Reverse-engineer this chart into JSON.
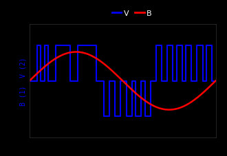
{
  "background_color": "#000000",
  "plot_bg_color": "#000000",
  "legend_colors": [
    "#0000ff",
    "#ff0000"
  ],
  "legend_labels": [
    "V",
    "B"
  ],
  "ylabel": "B (1)  V (2)",
  "ylabel_color": "#0000ff",
  "ylabel_fontsize": 7,
  "pwm_color": "#0000ff",
  "sine_color": "#ff0000",
  "pwm_linewidth": 1.5,
  "sine_linewidth": 1.8,
  "xlim": [
    0,
    1
  ],
  "ylim": [
    -1.6,
    1.6
  ],
  "sine_amplitude": 0.82,
  "sine_phase": 0.0,
  "pwm_segments": [
    [
      0.0,
      0.0
    ],
    [
      0.04,
      1.0
    ],
    [
      0.06,
      0.0
    ],
    [
      0.08,
      1.0
    ],
    [
      0.1,
      0.0
    ],
    [
      0.14,
      1.0
    ],
    [
      0.22,
      0.0
    ],
    [
      0.26,
      1.0
    ],
    [
      0.36,
      0.0
    ],
    [
      0.4,
      -1.0
    ],
    [
      0.43,
      0.0
    ],
    [
      0.46,
      -1.0
    ],
    [
      0.49,
      0.0
    ],
    [
      0.52,
      -1.0
    ],
    [
      0.55,
      0.0
    ],
    [
      0.57,
      -1.0
    ],
    [
      0.6,
      0.0
    ],
    [
      0.62,
      -1.0
    ],
    [
      0.65,
      0.0
    ],
    [
      0.68,
      1.0
    ],
    [
      0.71,
      0.0
    ],
    [
      0.74,
      1.0
    ],
    [
      0.77,
      0.0
    ],
    [
      0.79,
      1.0
    ],
    [
      0.82,
      0.0
    ],
    [
      0.84,
      1.0
    ],
    [
      0.87,
      0.0
    ],
    [
      0.9,
      1.0
    ],
    [
      0.93,
      0.0
    ],
    [
      0.95,
      1.0
    ],
    [
      0.98,
      0.0
    ],
    [
      1.0,
      0.0
    ]
  ]
}
